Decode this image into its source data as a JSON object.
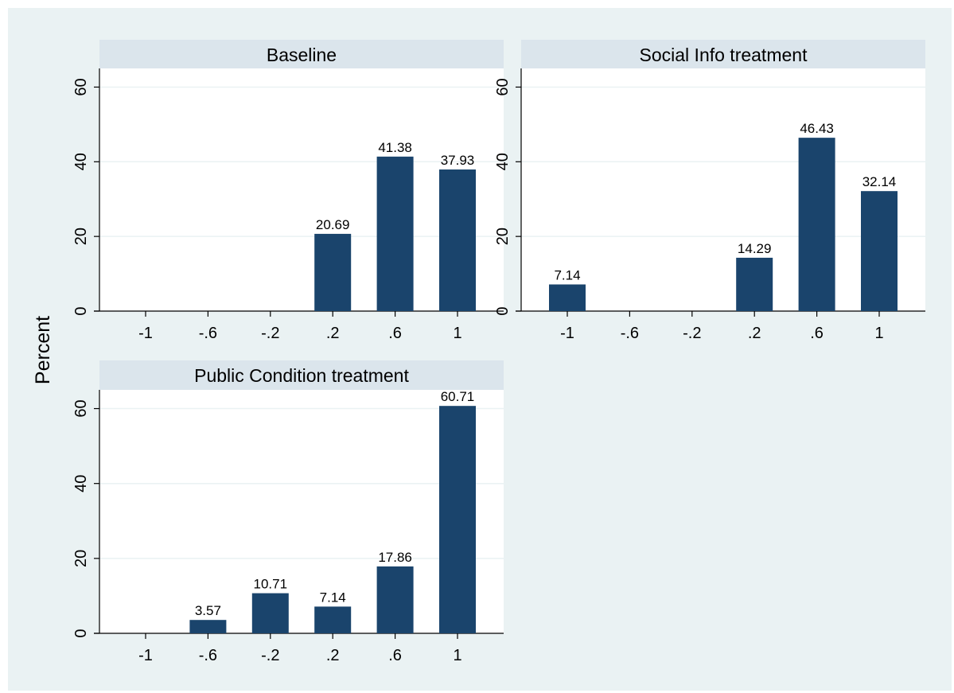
{
  "chart_data": {
    "type": "bar",
    "ylabel": "Percent",
    "xlabel": "",
    "ylim": [
      0,
      65
    ],
    "yticks": [
      0,
      20,
      40,
      60
    ],
    "grid": true,
    "categories": [
      "-1",
      "-.6",
      "-.2",
      ".2",
      ".6",
      "1"
    ],
    "colors": {
      "bar": "#1a446c",
      "panel_header": "#dbe5ec",
      "outer_background": "#eaf2f3",
      "plot_background": "#ffffff",
      "gridline": "#eaf2f3"
    },
    "panels": [
      {
        "title": "Baseline",
        "values": [
          0,
          0,
          0,
          20.69,
          41.38,
          37.93
        ],
        "labels": [
          "",
          "",
          "",
          "20.69",
          "41.38",
          "37.93"
        ]
      },
      {
        "title": "Social Info treatment",
        "values": [
          7.14,
          0,
          0,
          14.29,
          46.43,
          32.14
        ],
        "labels": [
          "7.14",
          "",
          "",
          "14.29",
          "46.43",
          "32.14"
        ]
      },
      {
        "title": "Public Condition treatment",
        "values": [
          0,
          3.57,
          10.71,
          7.14,
          17.86,
          60.71
        ],
        "labels": [
          "",
          "3.57",
          "10.71",
          "7.14",
          "17.86",
          "60.71"
        ]
      }
    ]
  }
}
